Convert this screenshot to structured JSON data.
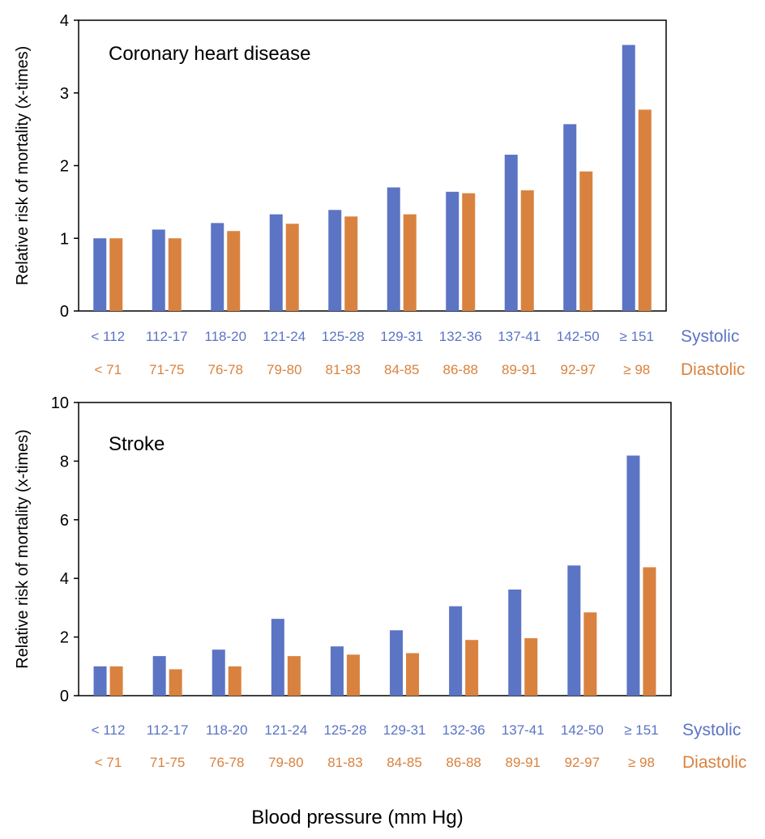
{
  "colors": {
    "systolic": "#5b74c4",
    "diastolic": "#d9823f"
  },
  "xlabel": "Blood pressure (mm Hg)",
  "systolic_label": "Systolic",
  "diastolic_label": "Diastolic",
  "chart_data": [
    {
      "type": "bar",
      "title": "Coronary heart disease",
      "ylabel": "Relative risk of mortality (x-times)",
      "ylim": [
        0,
        4
      ],
      "yticks": [
        "0",
        "1",
        "2",
        "3",
        "4"
      ],
      "categories_systolic": [
        "< 112",
        "112-17",
        "118-20",
        "121-24",
        "125-28",
        "129-31",
        "132-36",
        "137-41",
        "142-50",
        "≥ 151"
      ],
      "categories_diastolic": [
        "< 71",
        "71-75",
        "76-78",
        "79-80",
        "81-83",
        "84-85",
        "86-88",
        "89-91",
        "92-97",
        "≥ 98"
      ],
      "series": [
        {
          "name": "Systolic",
          "values": [
            1.0,
            1.12,
            1.21,
            1.33,
            1.39,
            1.7,
            1.64,
            2.15,
            2.57,
            3.66
          ]
        },
        {
          "name": "Diastolic",
          "values": [
            1.0,
            1.0,
            1.1,
            1.2,
            1.3,
            1.33,
            1.62,
            1.66,
            1.92,
            2.77
          ]
        }
      ]
    },
    {
      "type": "bar",
      "title": "Stroke",
      "ylabel": "Relative risk of mortality (x-times)",
      "ylim": [
        0,
        10
      ],
      "yticks": [
        "0",
        "2",
        "4",
        "6",
        "8",
        "10"
      ],
      "categories_systolic": [
        "< 112",
        "112-17",
        "118-20",
        "121-24",
        "125-28",
        "129-31",
        "132-36",
        "137-41",
        "142-50",
        "≥ 151"
      ],
      "categories_diastolic": [
        "< 71",
        "71-75",
        "76-78",
        "79-80",
        "81-83",
        "84-85",
        "86-88",
        "89-91",
        "92-97",
        "≥ 98"
      ],
      "series": [
        {
          "name": "Systolic",
          "values": [
            1.0,
            1.35,
            1.57,
            2.62,
            1.68,
            2.23,
            3.05,
            3.62,
            4.44,
            8.19
          ]
        },
        {
          "name": "Diastolic",
          "values": [
            1.0,
            0.9,
            1.0,
            1.35,
            1.4,
            1.45,
            1.9,
            1.96,
            2.84,
            4.38
          ]
        }
      ]
    }
  ]
}
